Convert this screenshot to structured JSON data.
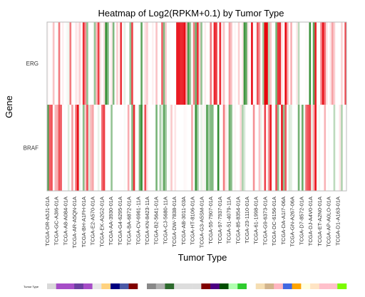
{
  "chart_data": {
    "type": "heatmap",
    "title": "Heatmap of Log2(RPKM+0.1) by Tumor Type",
    "xlabel": "Tumor Type",
    "ylabel": "Gene",
    "rows": [
      "ERG",
      "BRAF"
    ],
    "x_tick_labels": [
      "TCGA-DR-A5J1-01A",
      "TCGA-GC-A3I6-01A",
      "TCGA-A8-A084-01A",
      "TCGA-AR-A5QN-01A",
      "TCGA-BH-A1FH-01A",
      "TCGA-E2-A570-01A",
      "TCGA-EK-A2G2-01A",
      "TCGA-AA-3930-01A",
      "TCGA-G4-6295-01A",
      "TCGA-BA-6872-01A",
      "TCGA-CV-6961-11A",
      "TCGA-KN-8423-11A",
      "TCGA-B2-5641-01A",
      "TCGA-CJ-5680-11A",
      "TCGA-DW-7838-01A",
      "TCGA-AB-3011-03A",
      "TCGA-HT-8106-01A",
      "TCGA-G3-A5SM-01A",
      "TCGA-55-7907-01A",
      "TCGA-97-7937-01A",
      "TCGA-51-4079-11A",
      "TCGA-85-8354-01A",
      "TCGA-23-1110-01A",
      "TCGA-61-1998-01A",
      "TCGA-G9-6373-01A",
      "TCGA-DC-6156-01A",
      "TCGA-DA-A1I7-06A",
      "TCGA-GN-A267-06A",
      "TCGA-D7-8572-01A",
      "TCGA-DJ-A4V0-01A",
      "TCGA-ET-A2N0-01A",
      "TCGA-AP-A0LO-01A",
      "TCGA-D1-A163-01A"
    ],
    "n_samples": 160,
    "colorscale": [
      "#2e8b2e",
      "#ffffff",
      "#e8000a"
    ],
    "zlim": [
      -1,
      1
    ],
    "annotation_label": "Tumor Type",
    "annotation_colors": [
      "#d9d9d9",
      "#a64dc7",
      "#a64dc7",
      "#6b3fa0",
      "#a64dc7",
      "#e8e8e8",
      "#ffd27f",
      "#000080",
      "#4b5aa8",
      "#800000",
      "#ffffff",
      "#888888",
      "#b0b0b0",
      "#2e6b2e",
      "#dddddd",
      "#dddddd",
      "#dddddd",
      "#800000",
      "#4b0082",
      "#004d00",
      "#b0ffb0",
      "#2ecc2e",
      "#ffffff",
      "#f5deb3",
      "#d2b48c",
      "#ffb6c1",
      "#4169e1",
      "#ffa500",
      "#ffffe0",
      "#ffe4c4",
      "#ffc0cb",
      "#ffc0cb",
      "#7cfc00"
    ],
    "legend": "none",
    "grid": false
  }
}
